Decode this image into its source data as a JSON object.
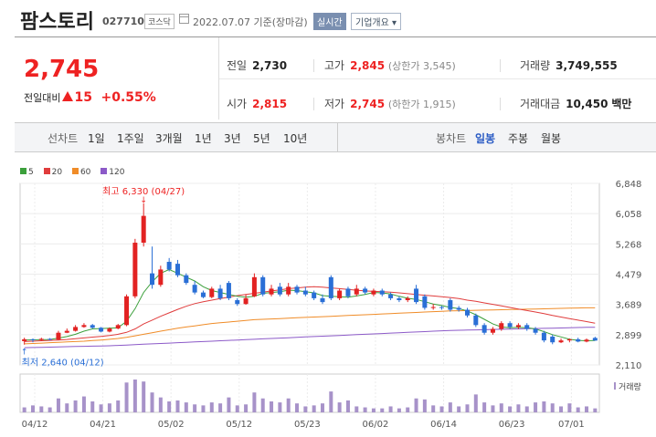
{
  "header": {
    "name": "팜스토리",
    "code": "027710",
    "market": "코스닥",
    "date": "2022.07.07",
    "basis": "기준(장마감)",
    "realtime": "실시간",
    "company_info": "기업개요"
  },
  "quote": {
    "price": "2,745",
    "change_label": "전일대비",
    "change_value": "15",
    "change_rate": "+0.55%",
    "prev_close_label": "전일",
    "prev_close": "2,730",
    "high_label": "고가",
    "high": "2,845",
    "upper_limit": "(상한가 3,545)",
    "volume_label": "거래량",
    "volume": "3,749,555",
    "open_label": "시가",
    "open": "2,815",
    "low_label": "저가",
    "low": "2,745",
    "lower_limit": "(하한가 1,915)",
    "amount_label": "거래대금",
    "amount": "10,450",
    "amount_unit": "백만"
  },
  "tabs": {
    "line_chart": "선차트",
    "periods": [
      "1일",
      "1주일",
      "3개월",
      "1년",
      "3년",
      "5년",
      "10년"
    ],
    "candle_chart": "봉차트",
    "candle_periods": [
      "일봉",
      "주봉",
      "월봉"
    ],
    "selected_candle": "일봉"
  },
  "legend": [
    {
      "label": "5",
      "color": "#3ca03c"
    },
    {
      "label": "20",
      "color": "#e03c3c"
    },
    {
      "label": "60",
      "color": "#f08c28"
    },
    {
      "label": "120",
      "color": "#8c5ac8"
    }
  ],
  "volume_legend": "거래량",
  "annotations": {
    "high": "최고 6,330 (04/27)",
    "low": "최저 2,640 (04/12)"
  },
  "chart_data": {
    "type": "candlestick",
    "y_ticks": [
      "6,848",
      "6,058",
      "5,268",
      "4,479",
      "3,689",
      "2,899",
      "2,110"
    ],
    "ylim": [
      2110,
      6848
    ],
    "x_ticks": [
      "04/12",
      "04/21",
      "05/02",
      "05/12",
      "05/23",
      "06/02",
      "06/14",
      "06/23",
      "07/01"
    ],
    "up_color": "#e22222",
    "down_color": "#2a6fd6",
    "candles": [
      {
        "o": 2730,
        "c": 2780,
        "h": 2820,
        "l": 2640,
        "v": 50
      },
      {
        "o": 2780,
        "c": 2760,
        "h": 2800,
        "l": 2700,
        "v": 70
      },
      {
        "o": 2760,
        "c": 2790,
        "h": 2820,
        "l": 2740,
        "v": 60
      },
      {
        "o": 2790,
        "c": 2770,
        "h": 2810,
        "l": 2750,
        "v": 50
      },
      {
        "o": 2770,
        "c": 2950,
        "h": 3000,
        "l": 2760,
        "v": 140
      },
      {
        "o": 2950,
        "c": 3000,
        "h": 3060,
        "l": 2940,
        "v": 90
      },
      {
        "o": 3000,
        "c": 3100,
        "h": 3150,
        "l": 2980,
        "v": 120
      },
      {
        "o": 3100,
        "c": 3150,
        "h": 3200,
        "l": 3080,
        "v": 160
      },
      {
        "o": 3150,
        "c": 3080,
        "h": 3180,
        "l": 3060,
        "v": 110
      },
      {
        "o": 3080,
        "c": 2980,
        "h": 3100,
        "l": 2960,
        "v": 80
      },
      {
        "o": 2980,
        "c": 3060,
        "h": 3090,
        "l": 2960,
        "v": 90
      },
      {
        "o": 3060,
        "c": 3150,
        "h": 3180,
        "l": 3040,
        "v": 120
      },
      {
        "o": 3150,
        "c": 3900,
        "h": 3950,
        "l": 3120,
        "v": 300
      },
      {
        "o": 3900,
        "c": 5300,
        "h": 5400,
        "l": 3850,
        "v": 330
      },
      {
        "o": 5300,
        "c": 6000,
        "h": 6330,
        "l": 5200,
        "v": 310
      },
      {
        "o": 4500,
        "c": 4200,
        "h": 5200,
        "l": 4100,
        "v": 200
      },
      {
        "o": 4200,
        "c": 4600,
        "h": 4700,
        "l": 4150,
        "v": 150
      },
      {
        "o": 4800,
        "c": 4600,
        "h": 4900,
        "l": 4550,
        "v": 110
      },
      {
        "o": 4750,
        "c": 4450,
        "h": 4850,
        "l": 4400,
        "v": 120
      },
      {
        "o": 4450,
        "c": 4250,
        "h": 4500,
        "l": 4200,
        "v": 100
      },
      {
        "o": 4200,
        "c": 4000,
        "h": 4300,
        "l": 3950,
        "v": 80
      },
      {
        "o": 4000,
        "c": 3880,
        "h": 4050,
        "l": 3850,
        "v": 70
      },
      {
        "o": 3880,
        "c": 4100,
        "h": 4150,
        "l": 3850,
        "v": 100
      },
      {
        "o": 4100,
        "c": 3850,
        "h": 4200,
        "l": 3800,
        "v": 90
      },
      {
        "o": 4250,
        "c": 3850,
        "h": 4300,
        "l": 3800,
        "v": 150
      },
      {
        "o": 3800,
        "c": 3700,
        "h": 3850,
        "l": 3650,
        "v": 70
      },
      {
        "o": 3700,
        "c": 3850,
        "h": 3950,
        "l": 3680,
        "v": 80
      },
      {
        "o": 3900,
        "c": 4400,
        "h": 4500,
        "l": 3880,
        "v": 200
      },
      {
        "o": 4400,
        "c": 3950,
        "h": 4450,
        "l": 3900,
        "v": 140
      },
      {
        "o": 3950,
        "c": 4100,
        "h": 4200,
        "l": 3900,
        "v": 110
      },
      {
        "o": 4150,
        "c": 3950,
        "h": 4250,
        "l": 3900,
        "v": 100
      },
      {
        "o": 3950,
        "c": 4150,
        "h": 4250,
        "l": 3900,
        "v": 140
      },
      {
        "o": 4150,
        "c": 4000,
        "h": 4200,
        "l": 3950,
        "v": 90
      },
      {
        "o": 4050,
        "c": 3950,
        "h": 4150,
        "l": 3900,
        "v": 60
      },
      {
        "o": 4000,
        "c": 3850,
        "h": 4050,
        "l": 3800,
        "v": 70
      },
      {
        "o": 3850,
        "c": 3750,
        "h": 3950,
        "l": 3700,
        "v": 90
      },
      {
        "o": 4400,
        "c": 3850,
        "h": 4450,
        "l": 3800,
        "v": 210
      },
      {
        "o": 3850,
        "c": 4050,
        "h": 4100,
        "l": 3800,
        "v": 100
      },
      {
        "o": 4100,
        "c": 3900,
        "h": 4150,
        "l": 3850,
        "v": 120
      },
      {
        "o": 3950,
        "c": 4100,
        "h": 4200,
        "l": 3900,
        "v": 60
      },
      {
        "o": 4100,
        "c": 4000,
        "h": 4150,
        "l": 3950,
        "v": 50
      },
      {
        "o": 3950,
        "c": 4050,
        "h": 4100,
        "l": 3900,
        "v": 40
      },
      {
        "o": 4050,
        "c": 3950,
        "h": 4100,
        "l": 3900,
        "v": 40
      },
      {
        "o": 3950,
        "c": 3850,
        "h": 4000,
        "l": 3800,
        "v": 60
      },
      {
        "o": 3850,
        "c": 3800,
        "h": 3900,
        "l": 3750,
        "v": 40
      },
      {
        "o": 3800,
        "c": 3850,
        "h": 3900,
        "l": 3750,
        "v": 50
      },
      {
        "o": 4100,
        "c": 3750,
        "h": 4200,
        "l": 3700,
        "v": 140
      },
      {
        "o": 3900,
        "c": 3600,
        "h": 3950,
        "l": 3550,
        "v": 130
      },
      {
        "o": 3600,
        "c": 3620,
        "h": 3700,
        "l": 3550,
        "v": 70
      },
      {
        "o": 3620,
        "c": 3600,
        "h": 3650,
        "l": 3550,
        "v": 60
      },
      {
        "o": 3800,
        "c": 3550,
        "h": 3850,
        "l": 3500,
        "v": 100
      },
      {
        "o": 3600,
        "c": 3550,
        "h": 3650,
        "l": 3500,
        "v": 60
      },
      {
        "o": 3550,
        "c": 3400,
        "h": 3600,
        "l": 3350,
        "v": 80
      },
      {
        "o": 3400,
        "c": 3150,
        "h": 3450,
        "l": 3100,
        "v": 180
      },
      {
        "o": 3150,
        "c": 2950,
        "h": 3200,
        "l": 2900,
        "v": 100
      },
      {
        "o": 2950,
        "c": 3050,
        "h": 3100,
        "l": 2900,
        "v": 70
      },
      {
        "o": 3050,
        "c": 3200,
        "h": 3250,
        "l": 3000,
        "v": 90
      },
      {
        "o": 3200,
        "c": 3100,
        "h": 3250,
        "l": 3050,
        "v": 60
      },
      {
        "o": 3100,
        "c": 3150,
        "h": 3200,
        "l": 3050,
        "v": 80
      },
      {
        "o": 3150,
        "c": 3050,
        "h": 3200,
        "l": 3000,
        "v": 60
      },
      {
        "o": 3050,
        "c": 2950,
        "h": 3100,
        "l": 2900,
        "v": 100
      },
      {
        "o": 2950,
        "c": 2750,
        "h": 3000,
        "l": 2700,
        "v": 110
      },
      {
        "o": 2850,
        "c": 2700,
        "h": 2900,
        "l": 2650,
        "v": 90
      },
      {
        "o": 2700,
        "c": 2750,
        "h": 2800,
        "l": 2680,
        "v": 60
      },
      {
        "o": 2750,
        "c": 2780,
        "h": 2800,
        "l": 2700,
        "v": 90
      },
      {
        "o": 2780,
        "c": 2720,
        "h": 2820,
        "l": 2700,
        "v": 50
      },
      {
        "o": 2720,
        "c": 2770,
        "h": 2800,
        "l": 2700,
        "v": 60
      },
      {
        "o": 2815,
        "c": 2745,
        "h": 2845,
        "l": 2745,
        "v": 40
      }
    ],
    "ma5": [
      2760,
      2765,
      2770,
      2775,
      2810,
      2850,
      2910,
      2990,
      3050,
      3060,
      3070,
      3080,
      3250,
      3580,
      4000,
      4280,
      4500,
      4600,
      4500,
      4400,
      4300,
      4150,
      4050,
      4000,
      3950,
      3900,
      3880,
      3900,
      3980,
      4000,
      4020,
      4060,
      4050,
      4020,
      3990,
      3920,
      3900,
      3890,
      3880,
      3910,
      3950,
      4000,
      3990,
      3960,
      3900,
      3850,
      3820,
      3760,
      3700,
      3660,
      3610,
      3580,
      3520,
      3420,
      3300,
      3180,
      3100,
      3080,
      3090,
      3080,
      3050,
      2980,
      2900,
      2840,
      2780,
      2750,
      2740,
      2745
    ],
    "ma20": [
      2720,
      2730,
      2740,
      2750,
      2760,
      2775,
      2795,
      2815,
      2835,
      2855,
      2880,
      2910,
      2960,
      3050,
      3180,
      3280,
      3380,
      3470,
      3560,
      3640,
      3710,
      3760,
      3800,
      3840,
      3880,
      3920,
      3950,
      3980,
      4010,
      4040,
      4070,
      4100,
      4120,
      4140,
      4150,
      4140,
      4120,
      4100,
      4080,
      4060,
      4040,
      4030,
      4020,
      4010,
      3990,
      3970,
      3950,
      3930,
      3910,
      3890,
      3870,
      3840,
      3800,
      3770,
      3730,
      3690,
      3650,
      3610,
      3570,
      3530,
      3490,
      3450,
      3400,
      3360,
      3320,
      3280,
      3240,
      3200
    ],
    "ma60": [
      2660,
      2670,
      2680,
      2690,
      2700,
      2710,
      2720,
      2730,
      2745,
      2760,
      2780,
      2800,
      2830,
      2870,
      2910,
      2950,
      2990,
      3030,
      3070,
      3100,
      3130,
      3160,
      3190,
      3210,
      3230,
      3250,
      3270,
      3290,
      3300,
      3310,
      3320,
      3330,
      3340,
      3350,
      3360,
      3370,
      3380,
      3390,
      3400,
      3410,
      3420,
      3430,
      3440,
      3450,
      3460,
      3470,
      3480,
      3490,
      3500,
      3510,
      3520,
      3525,
      3530,
      3535,
      3540,
      3545,
      3550,
      3555,
      3560,
      3565,
      3570,
      3575,
      3580,
      3585,
      3590,
      3595,
      3600,
      3600
    ],
    "ma120": [
      2560,
      2565,
      2570,
      2575,
      2580,
      2585,
      2590,
      2595,
      2600,
      2605,
      2610,
      2620,
      2630,
      2640,
      2650,
      2660,
      2670,
      2680,
      2690,
      2700,
      2710,
      2720,
      2730,
      2740,
      2750,
      2760,
      2770,
      2780,
      2790,
      2800,
      2810,
      2820,
      2830,
      2840,
      2850,
      2860,
      2870,
      2880,
      2890,
      2900,
      2910,
      2920,
      2930,
      2940,
      2950,
      2960,
      2970,
      2980,
      2990,
      3000,
      3010,
      3015,
      3020,
      3025,
      3030,
      3035,
      3040,
      3045,
      3050,
      3055,
      3060,
      3065,
      3070,
      3075,
      3080,
      3085,
      3090,
      3090
    ]
  }
}
